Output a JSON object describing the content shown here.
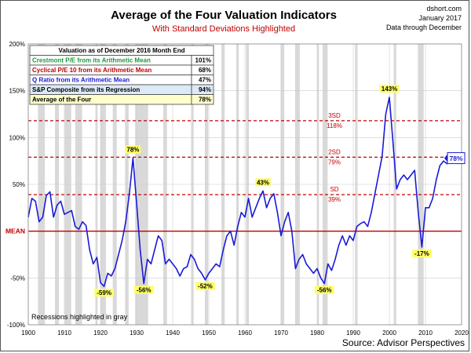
{
  "chart_data": {
    "type": "line",
    "title": "Average of the Four Valuation Indicators",
    "subtitle": "With Standard Deviations Highlighted",
    "site": "dshort.com",
    "date": "January 2017",
    "data_through": "Data through December",
    "source": "Source: Advisor Perspectives",
    "recession_note": "Recessions highlighted in gray",
    "xlim": [
      1900,
      2020
    ],
    "ylim": [
      -100,
      200
    ],
    "x_ticks": [
      1900,
      1910,
      1920,
      1930,
      1940,
      1950,
      1960,
      1970,
      1980,
      1990,
      2000,
      2010,
      2020
    ],
    "y_ticks": [
      {
        "value": 200,
        "label": "200%"
      },
      {
        "value": 150,
        "label": "150%"
      },
      {
        "value": 100,
        "label": "100%"
      },
      {
        "value": 50,
        "label": "50%"
      },
      {
        "value": 0,
        "label": "MEAN"
      },
      {
        "value": -50,
        "label": "-50%"
      },
      {
        "value": -100,
        "label": "-100%"
      }
    ],
    "grid": true,
    "colors": {
      "series": "#1a1ad8",
      "mean": "#c00000",
      "sd": "#c00000",
      "recession": "#d9d9d9",
      "title": "#000000",
      "subtitle": "#c00000",
      "callout": "#ffff66"
    },
    "recessions": [
      [
        1902.7,
        1904.6
      ],
      [
        1907.4,
        1908.5
      ],
      [
        1910.1,
        1911.9
      ],
      [
        1913.0,
        1914.9
      ],
      [
        1918.6,
        1919.2
      ],
      [
        1920.0,
        1921.5
      ],
      [
        1923.4,
        1924.5
      ],
      [
        1926.8,
        1927.8
      ],
      [
        1929.6,
        1933.2
      ],
      [
        1937.4,
        1938.4
      ],
      [
        1945.1,
        1945.8
      ],
      [
        1948.9,
        1949.8
      ],
      [
        1953.5,
        1954.4
      ],
      [
        1957.6,
        1958.3
      ],
      [
        1960.3,
        1961.1
      ],
      [
        1969.9,
        1970.9
      ],
      [
        1973.9,
        1975.2
      ],
      [
        1980.0,
        1980.5
      ],
      [
        1981.5,
        1982.9
      ],
      [
        1990.5,
        1991.2
      ],
      [
        2001.2,
        2001.9
      ],
      [
        2007.9,
        2009.5
      ]
    ],
    "sd_lines": [
      {
        "value": 118,
        "label": "3SD",
        "value_label": "118%"
      },
      {
        "value": 79,
        "label": "2SD",
        "value_label": "79%"
      },
      {
        "value": 39,
        "label": "SD",
        "value_label": "39%"
      }
    ],
    "mean_line": {
      "value": 0,
      "label": "MEAN"
    },
    "series": [
      {
        "points": [
          [
            1900,
            15
          ],
          [
            1901,
            35
          ],
          [
            1902,
            32
          ],
          [
            1903,
            10
          ],
          [
            1904,
            15
          ],
          [
            1905,
            38
          ],
          [
            1906,
            42
          ],
          [
            1907,
            15
          ],
          [
            1908,
            28
          ],
          [
            1909,
            32
          ],
          [
            1910,
            18
          ],
          [
            1911,
            20
          ],
          [
            1912,
            22
          ],
          [
            1913,
            5
          ],
          [
            1914,
            2
          ],
          [
            1915,
            10
          ],
          [
            1916,
            6
          ],
          [
            1917,
            -20
          ],
          [
            1918,
            -35
          ],
          [
            1919,
            -28
          ],
          [
            1920,
            -55
          ],
          [
            1921,
            -59
          ],
          [
            1922,
            -45
          ],
          [
            1923,
            -48
          ],
          [
            1924,
            -40
          ],
          [
            1925,
            -25
          ],
          [
            1926,
            -10
          ],
          [
            1927,
            10
          ],
          [
            1928,
            40
          ],
          [
            1929,
            78
          ],
          [
            1930,
            30
          ],
          [
            1931,
            -20
          ],
          [
            1932,
            -56
          ],
          [
            1933,
            -30
          ],
          [
            1934,
            -35
          ],
          [
            1935,
            -20
          ],
          [
            1936,
            -5
          ],
          [
            1937,
            -10
          ],
          [
            1938,
            -35
          ],
          [
            1939,
            -30
          ],
          [
            1940,
            -35
          ],
          [
            1941,
            -40
          ],
          [
            1942,
            -48
          ],
          [
            1943,
            -40
          ],
          [
            1944,
            -38
          ],
          [
            1945,
            -25
          ],
          [
            1946,
            -30
          ],
          [
            1947,
            -40
          ],
          [
            1948,
            -45
          ],
          [
            1949,
            -52
          ],
          [
            1950,
            -45
          ],
          [
            1951,
            -40
          ],
          [
            1952,
            -35
          ],
          [
            1953,
            -38
          ],
          [
            1954,
            -20
          ],
          [
            1955,
            -5
          ],
          [
            1956,
            0
          ],
          [
            1957,
            -15
          ],
          [
            1958,
            5
          ],
          [
            1959,
            20
          ],
          [
            1960,
            15
          ],
          [
            1961,
            35
          ],
          [
            1962,
            15
          ],
          [
            1963,
            25
          ],
          [
            1964,
            35
          ],
          [
            1965,
            43
          ],
          [
            1966,
            25
          ],
          [
            1967,
            35
          ],
          [
            1968,
            40
          ],
          [
            1969,
            20
          ],
          [
            1970,
            -5
          ],
          [
            1971,
            10
          ],
          [
            1972,
            20
          ],
          [
            1973,
            0
          ],
          [
            1974,
            -40
          ],
          [
            1975,
            -30
          ],
          [
            1976,
            -25
          ],
          [
            1977,
            -35
          ],
          [
            1978,
            -40
          ],
          [
            1979,
            -45
          ],
          [
            1980,
            -40
          ],
          [
            1981,
            -50
          ],
          [
            1982,
            -56
          ],
          [
            1983,
            -35
          ],
          [
            1984,
            -42
          ],
          [
            1985,
            -30
          ],
          [
            1986,
            -15
          ],
          [
            1987,
            -5
          ],
          [
            1988,
            -15
          ],
          [
            1989,
            -5
          ],
          [
            1990,
            -10
          ],
          [
            1991,
            5
          ],
          [
            1992,
            8
          ],
          [
            1993,
            10
          ],
          [
            1994,
            5
          ],
          [
            1995,
            20
          ],
          [
            1996,
            40
          ],
          [
            1997,
            60
          ],
          [
            1998,
            80
          ],
          [
            1999,
            125
          ],
          [
            2000,
            143
          ],
          [
            2001,
            95
          ],
          [
            2002,
            45
          ],
          [
            2003,
            55
          ],
          [
            2004,
            60
          ],
          [
            2005,
            55
          ],
          [
            2006,
            60
          ],
          [
            2007,
            65
          ],
          [
            2008,
            20
          ],
          [
            2009,
            -17
          ],
          [
            2010,
            25
          ],
          [
            2011,
            25
          ],
          [
            2012,
            35
          ],
          [
            2013,
            55
          ],
          [
            2014,
            70
          ],
          [
            2015,
            75
          ],
          [
            2016,
            72
          ],
          [
            2016.9,
            78
          ]
        ]
      }
    ],
    "annotations": [
      {
        "x": 1921,
        "y": -59,
        "label": "-59%",
        "position": "below"
      },
      {
        "x": 1929,
        "y": 78,
        "label": "78%",
        "position": "above"
      },
      {
        "x": 1932,
        "y": -56,
        "label": "-56%",
        "position": "below"
      },
      {
        "x": 1949,
        "y": -52,
        "label": "-52%",
        "position": "below"
      },
      {
        "x": 1965,
        "y": 43,
        "label": "43%",
        "position": "above"
      },
      {
        "x": 1982,
        "y": -56,
        "label": "-56%",
        "position": "below"
      },
      {
        "x": 2000,
        "y": 143,
        "label": "143%",
        "position": "above"
      },
      {
        "x": 2009,
        "y": -17,
        "label": "-17%",
        "position": "below"
      }
    ],
    "current_value": {
      "x": 2016.9,
      "y": 78,
      "label": "78%"
    },
    "table": {
      "title": "Valuation as of December 2016  Month End",
      "rows": [
        {
          "label": "Crestmont P/E from its Arithmetic Mean",
          "value": "101%",
          "color": "#1a9a3a",
          "bg": "#ffffff"
        },
        {
          "label": "Cyclical P/E 10 from its Arithmetic Mean",
          "value": "68%",
          "color": "#c00000",
          "bg": "#ffffff"
        },
        {
          "label": "Q Ratio from its Arithmetic Mean",
          "value": "47%",
          "color": "#1a1ad8",
          "bg": "#ffffff"
        },
        {
          "label": "S&P Composite from its Regression",
          "value": "94%",
          "color": "#000000",
          "bg": "#dce9f7"
        },
        {
          "label": "Average of the Four",
          "value": "78%",
          "color": "#000000",
          "bg": "#ffffcc"
        }
      ]
    }
  }
}
